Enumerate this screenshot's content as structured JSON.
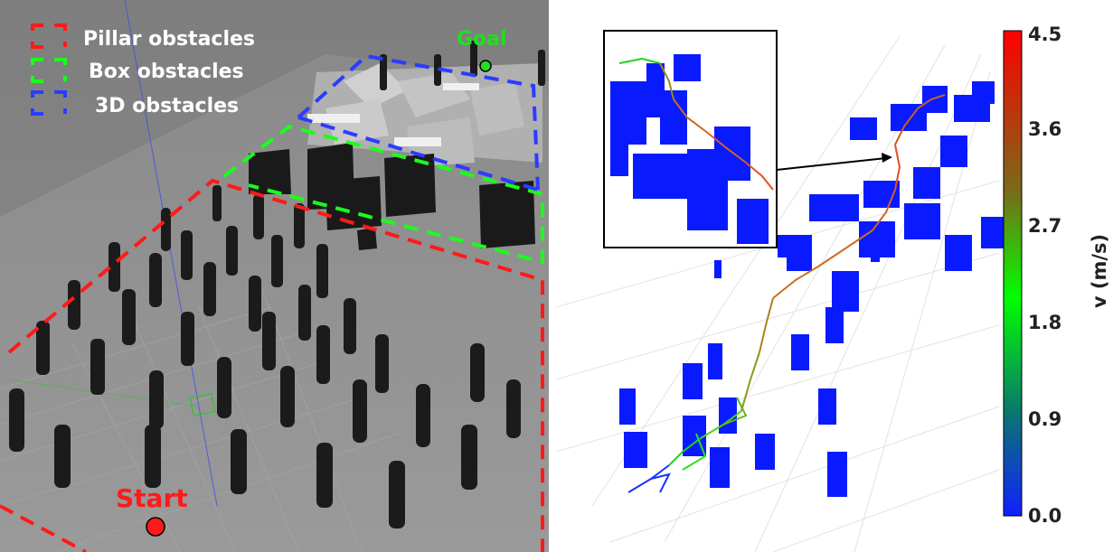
{
  "left_panel": {
    "legend": [
      {
        "label": "Pillar obstacles",
        "color": "#ff1a1a"
      },
      {
        "label": "Box obstacles",
        "color": "#1aff1a"
      },
      {
        "label": "3D obstacles",
        "color": "#2a3cff"
      }
    ],
    "goal_label": "Goal",
    "start_label": "Start",
    "colors": {
      "ground": "#8a8a8a",
      "pillar": "#1b1b1b",
      "box": "#1a1a1a",
      "start": "#ff1a1a",
      "goal": "#22dd22"
    }
  },
  "right_panel": {
    "colorbar": {
      "label": "v (m/s)",
      "ticks": [
        "4.5",
        "3.6",
        "2.7",
        "1.8",
        "0.9",
        "0.0"
      ],
      "colors": [
        "#ff0000",
        "#7a6a1a",
        "#00ff00",
        "#1020ff"
      ]
    },
    "colors": {
      "voxel": "#0a1aff",
      "inset_border": "#000000"
    }
  }
}
